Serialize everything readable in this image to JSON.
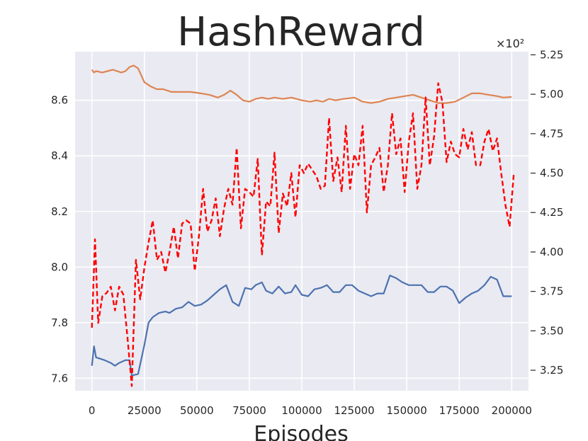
{
  "chart_data": {
    "type": "line",
    "title": "HashReward",
    "xlabel": "Episodes",
    "ylabel": "",
    "xlim": [
      -8000,
      208000
    ],
    "ylim_left": [
      7.555,
      8.775
    ],
    "ylim_right": [
      3.12,
      5.27
    ],
    "right_axis_multiplier": "×10²",
    "grid": true,
    "x_ticks": [
      0,
      25000,
      50000,
      75000,
      100000,
      125000,
      150000,
      175000,
      200000
    ],
    "y_ticks_left": [
      7.6,
      7.8,
      8.0,
      8.2,
      8.4,
      8.6
    ],
    "y_ticks_left_labels": [
      "7.6",
      "7.8",
      "8.0",
      "8.2",
      "8.4",
      "8.6"
    ],
    "y_ticks_right": [
      3.25,
      3.5,
      3.75,
      4.0,
      4.25,
      4.5,
      4.75,
      5.0,
      5.25
    ],
    "y_ticks_right_labels": [
      "3.25",
      "3.50",
      "3.75",
      "4.00",
      "4.25",
      "4.50",
      "4.75",
      "5.00",
      "5.25"
    ],
    "colors": {
      "background": "#eaeaf2",
      "grid": "#ffffff"
    },
    "series": [
      {
        "axis": "left",
        "color": "#dd8452",
        "style": "solid",
        "points": [
          [
            0,
            8.71
          ],
          [
            1000,
            8.7
          ],
          [
            2000,
            8.705
          ],
          [
            5000,
            8.7
          ],
          [
            10000,
            8.71
          ],
          [
            14000,
            8.7
          ],
          [
            16000,
            8.705
          ],
          [
            18000,
            8.72
          ],
          [
            20000,
            8.725
          ],
          [
            22000,
            8.715
          ],
          [
            25000,
            8.665
          ],
          [
            28000,
            8.65
          ],
          [
            31000,
            8.64
          ],
          [
            34000,
            8.64
          ],
          [
            38000,
            8.63
          ],
          [
            42000,
            8.63
          ],
          [
            47000,
            8.63
          ],
          [
            52000,
            8.625
          ],
          [
            56000,
            8.62
          ],
          [
            60000,
            8.61
          ],
          [
            63000,
            8.62
          ],
          [
            66000,
            8.635
          ],
          [
            69000,
            8.62
          ],
          [
            72000,
            8.6
          ],
          [
            75000,
            8.595
          ],
          [
            78000,
            8.605
          ],
          [
            81000,
            8.61
          ],
          [
            84000,
            8.605
          ],
          [
            87000,
            8.61
          ],
          [
            91000,
            8.605
          ],
          [
            95000,
            8.61
          ],
          [
            100000,
            8.6
          ],
          [
            104000,
            8.595
          ],
          [
            107000,
            8.6
          ],
          [
            110000,
            8.595
          ],
          [
            113000,
            8.605
          ],
          [
            116000,
            8.6
          ],
          [
            120000,
            8.605
          ],
          [
            125000,
            8.61
          ],
          [
            129000,
            8.595
          ],
          [
            133000,
            8.59
          ],
          [
            137000,
            8.595
          ],
          [
            141000,
            8.605
          ],
          [
            145000,
            8.61
          ],
          [
            149000,
            8.615
          ],
          [
            153000,
            8.62
          ],
          [
            157000,
            8.61
          ],
          [
            161000,
            8.6
          ],
          [
            165000,
            8.59
          ],
          [
            169000,
            8.59
          ],
          [
            173000,
            8.595
          ],
          [
            177000,
            8.61
          ],
          [
            181000,
            8.625
          ],
          [
            185000,
            8.625
          ],
          [
            189000,
            8.62
          ],
          [
            193000,
            8.615
          ],
          [
            196000,
            8.61
          ],
          [
            200000,
            8.612
          ]
        ]
      },
      {
        "axis": "left",
        "color": "#4c72b0",
        "style": "solid",
        "points": [
          [
            0,
            7.645
          ],
          [
            1000,
            7.715
          ],
          [
            2000,
            7.675
          ],
          [
            4000,
            7.67
          ],
          [
            6000,
            7.665
          ],
          [
            9000,
            7.655
          ],
          [
            11000,
            7.645
          ],
          [
            13000,
            7.655
          ],
          [
            16000,
            7.665
          ],
          [
            18000,
            7.665
          ],
          [
            19000,
            7.61
          ],
          [
            22000,
            7.615
          ],
          [
            25000,
            7.72
          ],
          [
            27000,
            7.8
          ],
          [
            29000,
            7.82
          ],
          [
            32000,
            7.835
          ],
          [
            35000,
            7.84
          ],
          [
            37000,
            7.835
          ],
          [
            40000,
            7.85
          ],
          [
            43000,
            7.855
          ],
          [
            46000,
            7.875
          ],
          [
            49000,
            7.86
          ],
          [
            52000,
            7.865
          ],
          [
            55000,
            7.88
          ],
          [
            58000,
            7.9
          ],
          [
            61000,
            7.92
          ],
          [
            64000,
            7.935
          ],
          [
            67000,
            7.875
          ],
          [
            70000,
            7.86
          ],
          [
            73000,
            7.925
          ],
          [
            76000,
            7.92
          ],
          [
            78000,
            7.935
          ],
          [
            81000,
            7.945
          ],
          [
            83000,
            7.915
          ],
          [
            86000,
            7.905
          ],
          [
            89000,
            7.93
          ],
          [
            92000,
            7.905
          ],
          [
            95000,
            7.91
          ],
          [
            97000,
            7.935
          ],
          [
            100000,
            7.9
          ],
          [
            103000,
            7.895
          ],
          [
            106000,
            7.92
          ],
          [
            109000,
            7.925
          ],
          [
            112000,
            7.935
          ],
          [
            115000,
            7.91
          ],
          [
            118000,
            7.91
          ],
          [
            121000,
            7.935
          ],
          [
            124000,
            7.935
          ],
          [
            127000,
            7.915
          ],
          [
            130000,
            7.905
          ],
          [
            133000,
            7.895
          ],
          [
            136000,
            7.905
          ],
          [
            139000,
            7.905
          ],
          [
            142000,
            7.97
          ],
          [
            145000,
            7.96
          ],
          [
            148000,
            7.945
          ],
          [
            151000,
            7.935
          ],
          [
            154000,
            7.935
          ],
          [
            157000,
            7.935
          ],
          [
            160000,
            7.91
          ],
          [
            163000,
            7.91
          ],
          [
            166000,
            7.93
          ],
          [
            169000,
            7.93
          ],
          [
            172000,
            7.915
          ],
          [
            175000,
            7.87
          ],
          [
            178000,
            7.89
          ],
          [
            181000,
            7.905
          ],
          [
            184000,
            7.915
          ],
          [
            187000,
            7.935
          ],
          [
            190000,
            7.965
          ],
          [
            193000,
            7.955
          ],
          [
            196000,
            7.895
          ],
          [
            200000,
            7.895
          ]
        ]
      },
      {
        "axis": "right",
        "color": "#ff0000",
        "style": "dashed",
        "points": [
          [
            0,
            3.52
          ],
          [
            1500,
            4.08
          ],
          [
            3000,
            3.55
          ],
          [
            5000,
            3.72
          ],
          [
            7000,
            3.74
          ],
          [
            9000,
            3.78
          ],
          [
            11000,
            3.63
          ],
          [
            13000,
            3.78
          ],
          [
            15000,
            3.73
          ],
          [
            17000,
            3.45
          ],
          [
            19000,
            3.15
          ],
          [
            21000,
            3.95
          ],
          [
            23000,
            3.7
          ],
          [
            25000,
            3.9
          ],
          [
            27000,
            4.06
          ],
          [
            29000,
            4.2
          ],
          [
            31000,
            3.95
          ],
          [
            33000,
            4.0
          ],
          [
            35000,
            3.87
          ],
          [
            37000,
            4.0
          ],
          [
            39000,
            4.16
          ],
          [
            41000,
            3.96
          ],
          [
            43000,
            4.18
          ],
          [
            45000,
            4.2
          ],
          [
            47000,
            4.18
          ],
          [
            49000,
            3.88
          ],
          [
            51000,
            4.1
          ],
          [
            53000,
            4.4
          ],
          [
            55000,
            4.13
          ],
          [
            57000,
            4.2
          ],
          [
            59000,
            4.34
          ],
          [
            61000,
            4.1
          ],
          [
            63000,
            4.28
          ],
          [
            65000,
            4.4
          ],
          [
            67000,
            4.3
          ],
          [
            69000,
            4.66
          ],
          [
            71000,
            4.15
          ],
          [
            73000,
            4.4
          ],
          [
            75000,
            4.38
          ],
          [
            77000,
            4.35
          ],
          [
            79000,
            4.59
          ],
          [
            81000,
            3.98
          ],
          [
            83000,
            4.32
          ],
          [
            85000,
            4.29
          ],
          [
            87000,
            4.63
          ],
          [
            89000,
            4.12
          ],
          [
            91000,
            4.37
          ],
          [
            93000,
            4.29
          ],
          [
            95000,
            4.5
          ],
          [
            97000,
            4.22
          ],
          [
            99000,
            4.55
          ],
          [
            101000,
            4.5
          ],
          [
            103000,
            4.56
          ],
          [
            105000,
            4.52
          ],
          [
            107000,
            4.48
          ],
          [
            109000,
            4.4
          ],
          [
            111000,
            4.42
          ],
          [
            113000,
            4.85
          ],
          [
            115000,
            4.45
          ],
          [
            117000,
            4.6
          ],
          [
            119000,
            4.38
          ],
          [
            121000,
            4.8
          ],
          [
            123000,
            4.4
          ],
          [
            125000,
            4.62
          ],
          [
            127000,
            4.55
          ],
          [
            129000,
            4.8
          ],
          [
            131000,
            4.25
          ],
          [
            133000,
            4.55
          ],
          [
            135000,
            4.6
          ],
          [
            137000,
            4.66
          ],
          [
            139000,
            4.38
          ],
          [
            141000,
            4.55
          ],
          [
            143000,
            4.88
          ],
          [
            145000,
            4.62
          ],
          [
            147000,
            4.72
          ],
          [
            149000,
            4.38
          ],
          [
            151000,
            4.7
          ],
          [
            153000,
            4.88
          ],
          [
            155000,
            4.4
          ],
          [
            157000,
            4.55
          ],
          [
            159000,
            4.98
          ],
          [
            161000,
            4.55
          ],
          [
            163000,
            4.73
          ],
          [
            165000,
            5.07
          ],
          [
            167000,
            4.95
          ],
          [
            169000,
            4.57
          ],
          [
            171000,
            4.7
          ],
          [
            173000,
            4.62
          ],
          [
            175000,
            4.6
          ],
          [
            177000,
            4.78
          ],
          [
            179000,
            4.65
          ],
          [
            181000,
            4.76
          ],
          [
            183000,
            4.55
          ],
          [
            185000,
            4.55
          ],
          [
            187000,
            4.7
          ],
          [
            189000,
            4.78
          ],
          [
            191000,
            4.64
          ],
          [
            193000,
            4.72
          ],
          [
            195000,
            4.5
          ],
          [
            197000,
            4.3
          ],
          [
            199000,
            4.16
          ],
          [
            201000,
            4.5
          ]
        ]
      }
    ]
  }
}
